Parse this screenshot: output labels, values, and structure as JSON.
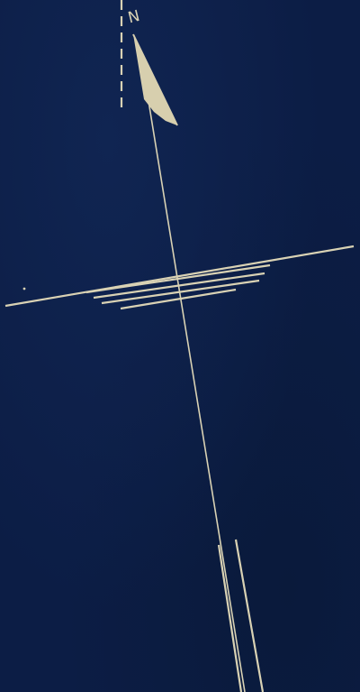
{
  "north_arrow": {
    "label": "N"
  },
  "colors": {
    "background": "#0c1d45",
    "line": "#d9d2b4",
    "arrow_fill": "#d7cfae"
  }
}
